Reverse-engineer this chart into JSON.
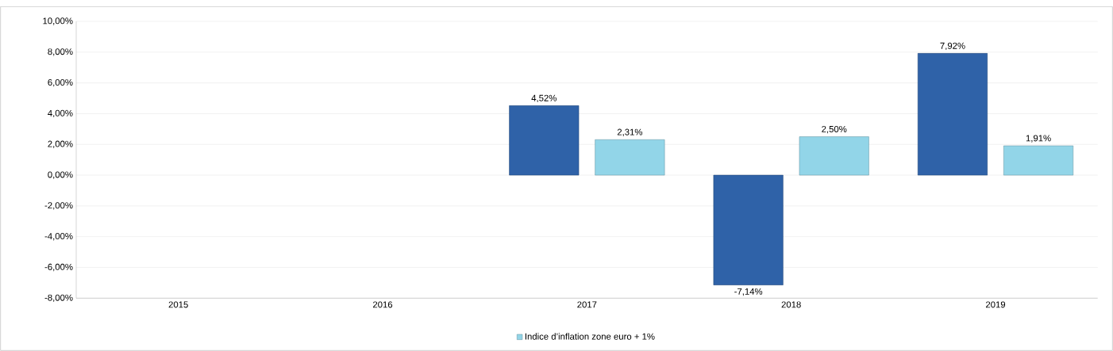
{
  "chart_data": {
    "type": "bar",
    "categories": [
      "2015",
      "2016",
      "2017",
      "2018",
      "2019"
    ],
    "series": [
      {
        "color": "#2f62a8",
        "values": [
          null,
          null,
          4.52,
          -7.14,
          7.92
        ],
        "value_labels": [
          null,
          null,
          "4,52%",
          "-7,14%",
          "7,92%"
        ]
      },
      {
        "name": "Indice d’inflation zone euro + 1%",
        "color": "#92d5e8",
        "values": [
          null,
          null,
          2.31,
          2.5,
          1.91
        ],
        "value_labels": [
          null,
          null,
          "2,31%",
          "2,50%",
          "1,91%"
        ]
      }
    ],
    "ylim": [
      -8,
      10
    ],
    "yticks": [
      {
        "value": -8,
        "label": "-8,00%"
      },
      {
        "value": -6,
        "label": "-6,00%"
      },
      {
        "value": -4,
        "label": "-4,00%"
      },
      {
        "value": -2,
        "label": "-2,00%"
      },
      {
        "value": 0,
        "label": "0,00%"
      },
      {
        "value": 2,
        "label": "2,00%"
      },
      {
        "value": 4,
        "label": "4,00%"
      },
      {
        "value": 6,
        "label": "6,00%"
      },
      {
        "value": 8,
        "label": "8,00%"
      },
      {
        "value": 10,
        "label": "10,00%"
      }
    ],
    "grid": "y",
    "legend": "bottom"
  }
}
